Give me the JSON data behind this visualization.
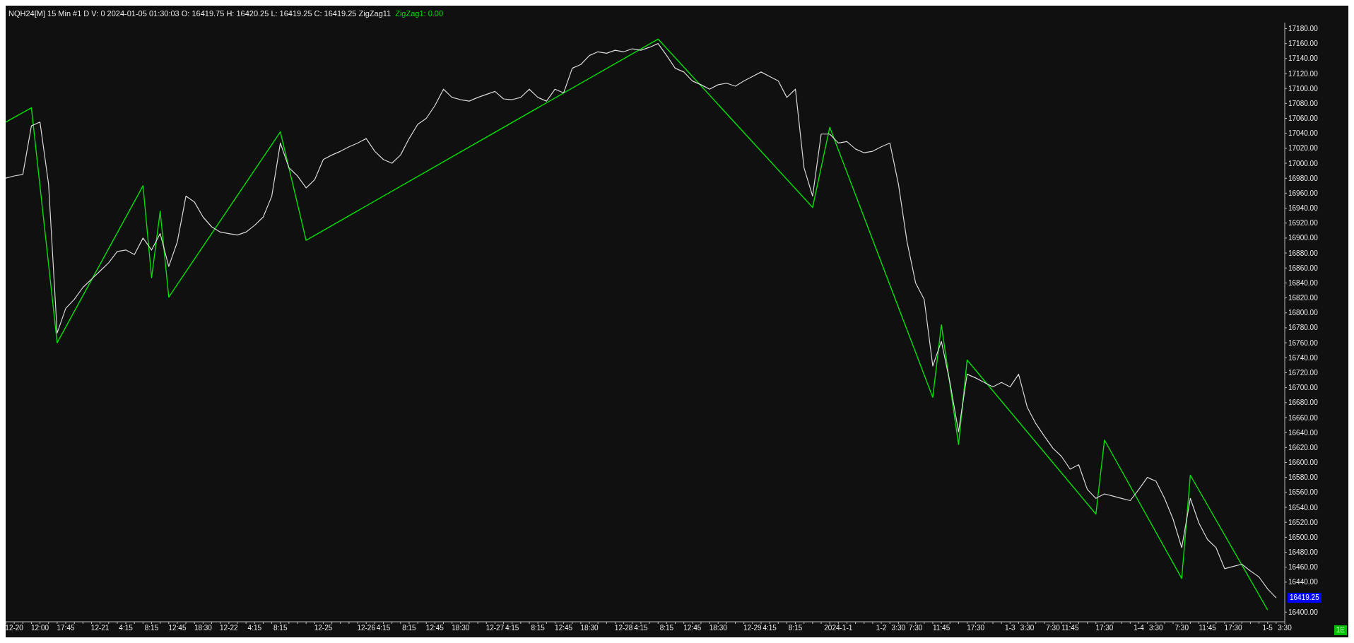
{
  "chart_data": {
    "type": "line",
    "title": "NQH24[M] 15 Min #1 D V: 0 2024-01-05 01:30:03 O: 16419.75 H: 16420.25 L: 16419.25 C: 16419.25 ZigZag11",
    "annotations": [
      "ZigZag1: 0.00",
      "16419.25",
      "1E"
    ],
    "categories": [
      null,
      "12-20",
      null,
      null,
      "12:00",
      null,
      null,
      "17:45",
      null,
      null,
      null,
      "12-21",
      null,
      null,
      "4:15",
      null,
      null,
      "8:15",
      null,
      null,
      "12:45",
      null,
      null,
      "18:30",
      null,
      null,
      "12-22",
      null,
      null,
      "4:15",
      null,
      null,
      "8:15",
      null,
      null,
      null,
      null,
      "12-25",
      null,
      null,
      null,
      null,
      "12-26",
      null,
      "4:15",
      null,
      null,
      "8:15",
      null,
      null,
      "12:45",
      null,
      null,
      "18:30",
      null,
      null,
      null,
      "12-27",
      null,
      "4:15",
      null,
      null,
      "8:15",
      null,
      null,
      "12:45",
      null,
      null,
      "18:30",
      null,
      null,
      null,
      "12-28",
      null,
      "4:15",
      null,
      null,
      "8:15",
      null,
      null,
      "12:45",
      null,
      null,
      "18:30",
      null,
      null,
      null,
      "12-29",
      null,
      "4:15",
      null,
      null,
      "8:15",
      null,
      null,
      null,
      null,
      "2024-1-1",
      null,
      null,
      null,
      null,
      "1-2",
      null,
      "3:30",
      null,
      "7:30",
      null,
      null,
      "11:45",
      null,
      null,
      null,
      "17:30",
      null,
      null,
      null,
      "1-3",
      null,
      "3:30",
      null,
      null,
      "7:30",
      null,
      "11:45",
      null,
      null,
      null,
      "17:30",
      null,
      null,
      null,
      "1-4",
      null,
      "3:30",
      null,
      null,
      "7:30",
      null,
      null,
      "11:45",
      null,
      null,
      "17:30",
      null,
      null,
      null,
      "1-5",
      null,
      "3:30"
    ],
    "ylim": [
      16387,
      17188
    ],
    "yticks": [
      {
        "value": 16400,
        "label": "16400.00"
      },
      {
        "value": 16440,
        "label": "16440.00"
      },
      {
        "value": 16460,
        "label": "16460.00"
      },
      {
        "value": 16480,
        "label": "16480.00"
      },
      {
        "value": 16500,
        "label": "16500.00"
      },
      {
        "value": 16520,
        "label": "16520.00"
      },
      {
        "value": 16540,
        "label": "16540.00"
      },
      {
        "value": 16560,
        "label": "16560.00"
      },
      {
        "value": 16580,
        "label": "16580.00"
      },
      {
        "value": 16600,
        "label": "16600.00"
      },
      {
        "value": 16620,
        "label": "16620.00"
      },
      {
        "value": 16640,
        "label": "16640.00"
      },
      {
        "value": 16660,
        "label": "16660.00"
      },
      {
        "value": 16680,
        "label": "16680.00"
      },
      {
        "value": 16700,
        "label": "16700.00"
      },
      {
        "value": 16720,
        "label": "16720.00"
      },
      {
        "value": 16740,
        "label": "16740.00"
      },
      {
        "value": 16760,
        "label": "16760.00"
      },
      {
        "value": 16780,
        "label": "16780.00"
      },
      {
        "value": 16800,
        "label": "16800.00"
      },
      {
        "value": 16820,
        "label": "16820.00"
      },
      {
        "value": 16840,
        "label": "16840.00"
      },
      {
        "value": 16860,
        "label": "16860.00"
      },
      {
        "value": 16880,
        "label": "16880.00"
      },
      {
        "value": 16900,
        "label": "16900.00"
      },
      {
        "value": 16920,
        "label": "16920.00"
      },
      {
        "value": 16940,
        "label": "16940.00"
      },
      {
        "value": 16960,
        "label": "16960.00"
      },
      {
        "value": 16980,
        "label": "16980.00"
      },
      {
        "value": 17000,
        "label": "17000.00"
      },
      {
        "value": 17020,
        "label": "17020.00"
      },
      {
        "value": 17040,
        "label": "17040.00"
      },
      {
        "value": 17060,
        "label": "17060.00"
      },
      {
        "value": 17080,
        "label": "17080.00"
      },
      {
        "value": 17100,
        "label": "17100.00"
      },
      {
        "value": 17120,
        "label": "17120.00"
      },
      {
        "value": 17140,
        "label": "17140.00"
      },
      {
        "value": 17160,
        "label": "17160.00"
      },
      {
        "value": 17180,
        "label": "17180.00"
      }
    ],
    "grid": false,
    "series": [
      {
        "color": "#d9d9d9",
        "values": [
          16980,
          16983,
          16985,
          17050,
          17055,
          16972,
          16773,
          16806,
          16818,
          16834,
          16845,
          16856,
          16867,
          16882,
          16884,
          16878,
          16900,
          16884,
          16906,
          16862,
          16895,
          16956,
          16948,
          16928,
          16915,
          16908,
          16906,
          16904,
          16908,
          16917,
          16928,
          16956,
          17027,
          16994,
          16983,
          16967,
          16978,
          17005,
          17011,
          17016,
          17022,
          17027,
          17033,
          17016,
          17005,
          17000,
          17011,
          17033,
          17052,
          17060,
          17077,
          17099,
          17088,
          17085,
          17083,
          17088,
          17092,
          17096,
          17086,
          17085,
          17088,
          17099,
          17088,
          17083,
          17099,
          17094,
          17127,
          17132,
          17144,
          17149,
          17147,
          17151,
          17149,
          17153,
          17151,
          17155,
          17160,
          17144,
          17127,
          17122,
          17110,
          17105,
          17099,
          17105,
          17107,
          17103,
          17110,
          17116,
          17122,
          17116,
          17110,
          17088,
          17099,
          16994,
          16956,
          17039,
          17039,
          17027,
          17029,
          17019,
          17014,
          17016,
          17022,
          17027,
          16972,
          16895,
          16840,
          16818,
          16729,
          16762,
          16707,
          16641,
          16718,
          16713,
          16707,
          16701,
          16707,
          16701,
          16718,
          16674,
          16652,
          16635,
          16619,
          16608,
          16591,
          16597,
          16564,
          16552,
          16558,
          16555,
          16552,
          16549,
          16564,
          16580,
          16575,
          16552,
          16524,
          16486,
          16552,
          16519,
          16497,
          16486,
          16458,
          16461,
          16464,
          16455,
          16447,
          16431,
          16419,
          null
        ]
      },
      {
        "color": "#00e000",
        "values": [
          17055,
          null,
          null,
          17074,
          null,
          null,
          16760,
          null,
          null,
          null,
          null,
          null,
          null,
          null,
          null,
          null,
          16970,
          16847,
          16936,
          16821,
          null,
          null,
          null,
          null,
          null,
          null,
          null,
          null,
          null,
          null,
          null,
          null,
          17042,
          null,
          null,
          16897,
          null,
          null,
          null,
          null,
          null,
          null,
          null,
          null,
          null,
          null,
          null,
          null,
          null,
          null,
          null,
          null,
          null,
          null,
          null,
          null,
          null,
          null,
          null,
          null,
          null,
          null,
          null,
          null,
          null,
          null,
          null,
          null,
          null,
          null,
          null,
          null,
          null,
          null,
          null,
          null,
          17166,
          null,
          null,
          null,
          null,
          null,
          null,
          null,
          null,
          null,
          null,
          null,
          null,
          null,
          null,
          null,
          null,
          null,
          16941,
          null,
          17048,
          null,
          null,
          null,
          null,
          null,
          null,
          null,
          null,
          null,
          null,
          null,
          16687,
          16784,
          null,
          16624,
          16737,
          null,
          null,
          null,
          null,
          null,
          null,
          null,
          null,
          null,
          null,
          null,
          null,
          null,
          null,
          16531,
          16630,
          null,
          null,
          null,
          null,
          null,
          null,
          null,
          null,
          16445,
          16583,
          null,
          null,
          null,
          null,
          null,
          null,
          null,
          null,
          16403,
          null,
          null
        ]
      }
    ]
  }
}
